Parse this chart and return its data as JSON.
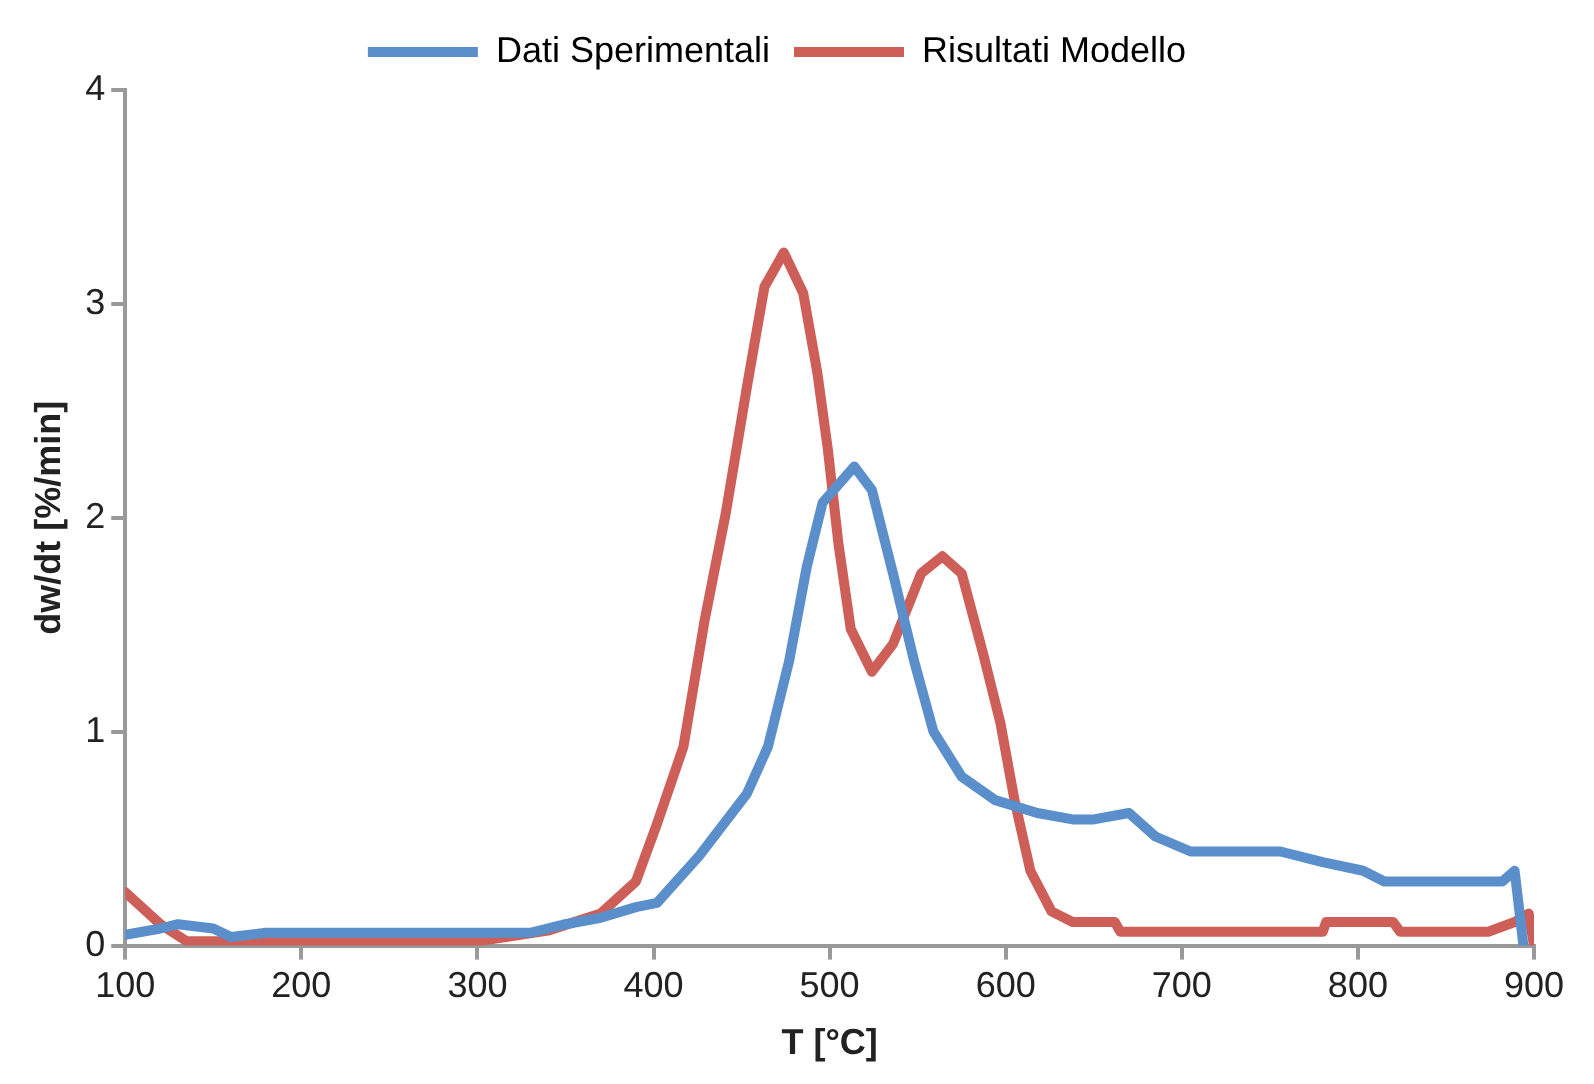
{
  "chart_data": {
    "type": "line",
    "xlabel": "T [°C]",
    "ylabel": "dw/dt [%/min]",
    "xlim": [
      100,
      900
    ],
    "xticks": [
      100,
      200,
      300,
      400,
      500,
      600,
      700,
      800,
      900
    ],
    "ylim": [
      0,
      4
    ],
    "yticks": [
      0,
      1,
      2,
      3,
      4
    ],
    "grid": false,
    "legend": "top",
    "marker": "none",
    "line_style": "solid",
    "series": [
      {
        "name": "Dati Sperimentali",
        "color": "#5b8fcb",
        "x": [
          100,
          120,
          130,
          150,
          160,
          180,
          250,
          300,
          330,
          350,
          370,
          390,
          402,
          426,
          453,
          465,
          477,
          487,
          496,
          514,
          524,
          536,
          548,
          559,
          575,
          594,
          618,
          638,
          650,
          670,
          685,
          705,
          756,
          780,
          803,
          815,
          882,
          889,
          894
        ],
        "values": [
          0.05,
          0.08,
          0.1,
          0.08,
          0.04,
          0.06,
          0.06,
          0.06,
          0.06,
          0.1,
          0.13,
          0.18,
          0.2,
          0.42,
          0.71,
          0.93,
          1.33,
          1.77,
          2.07,
          2.24,
          2.13,
          1.74,
          1.33,
          1.0,
          0.79,
          0.68,
          0.62,
          0.59,
          0.59,
          0.62,
          0.51,
          0.44,
          0.44,
          0.39,
          0.35,
          0.3,
          0.3,
          0.35,
          0
        ]
      },
      {
        "name": "Risultati Modello",
        "color": "#cd5f58",
        "x": [
          100,
          120,
          135,
          300,
          340,
          370,
          390,
          402,
          417,
          429,
          441,
          453,
          463,
          474,
          485,
          493,
          499,
          505,
          512,
          524,
          536,
          552,
          564,
          575,
          587,
          597,
          605,
          614,
          626,
          638,
          662,
          665,
          780,
          782,
          820,
          824,
          874,
          889,
          897,
          900
        ],
        "values": [
          0.25,
          0.1,
          0.02,
          0.02,
          0.07,
          0.15,
          0.3,
          0.57,
          0.93,
          1.52,
          2.02,
          2.61,
          3.08,
          3.24,
          3.05,
          2.68,
          2.32,
          1.88,
          1.48,
          1.28,
          1.41,
          1.74,
          1.82,
          1.74,
          1.37,
          1.04,
          0.68,
          0.35,
          0.16,
          0.11,
          0.11,
          0.065,
          0.065,
          0.11,
          0.11,
          0.065,
          0.065,
          0.11,
          0.15,
          0
        ]
      }
    ]
  }
}
